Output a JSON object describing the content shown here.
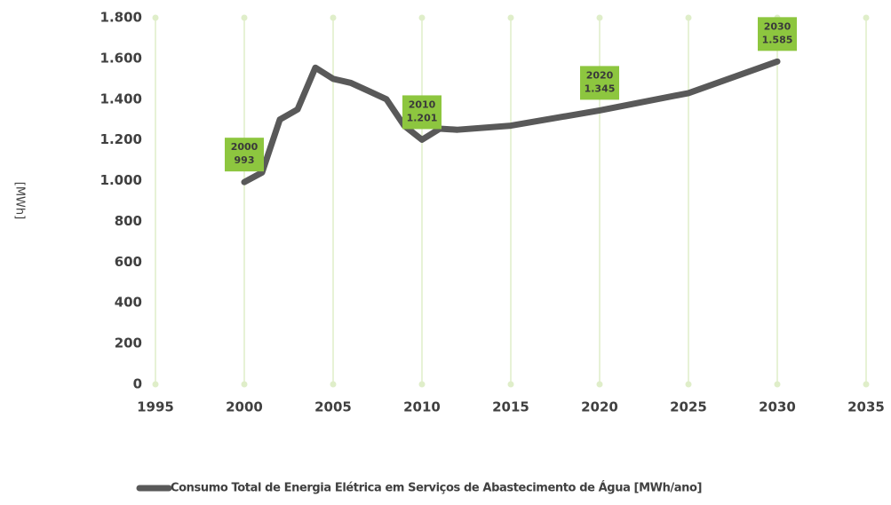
{
  "chart_data": {
    "type": "line",
    "y_label": "[MWh]",
    "x": [
      2000,
      2001,
      2002,
      2003,
      2004,
      2005,
      2006,
      2007,
      2008,
      2009,
      2010,
      2011,
      2012,
      2015,
      2020,
      2025,
      2030
    ],
    "series": [
      {
        "name": "Consumo Total de Energia Elétrica em Serviços de Abastecimento de Água [MWh/ano]",
        "color": "#595959",
        "values": [
          993,
          1040,
          1300,
          1350,
          1555,
          1500,
          1480,
          1440,
          1400,
          1270,
          1201,
          1255,
          1250,
          1270,
          1345,
          1430,
          1585
        ]
      }
    ],
    "annotations": [
      {
        "x": 2000,
        "y": 993,
        "lines": [
          "2000",
          "993"
        ]
      },
      {
        "x": 2010,
        "y": 1201,
        "lines": [
          "2010",
          "1.201"
        ]
      },
      {
        "x": 2020,
        "y": 1345,
        "lines": [
          "2020",
          "1.345"
        ]
      },
      {
        "x": 2030,
        "y": 1585,
        "lines": [
          "2030",
          "1.585"
        ]
      }
    ],
    "annotation_color": "#8dc63f",
    "xlim": [
      1995,
      2035
    ],
    "xticks": [
      1995,
      2000,
      2005,
      2010,
      2015,
      2020,
      2025,
      2030,
      2035
    ],
    "ylim": [
      0,
      1800
    ],
    "yticks": [
      0,
      200,
      400,
      600,
      800,
      {
        "value": 1000,
        "label": "1.000"
      },
      {
        "value": 1200,
        "label": "1.200"
      },
      {
        "value": 1400,
        "label": "1.400"
      },
      {
        "value": 1600,
        "label": "1.600"
      },
      {
        "value": 1800,
        "label": "1.800"
      }
    ],
    "grid": true,
    "grid_color": "#dfeec9",
    "legend": "bottom"
  }
}
